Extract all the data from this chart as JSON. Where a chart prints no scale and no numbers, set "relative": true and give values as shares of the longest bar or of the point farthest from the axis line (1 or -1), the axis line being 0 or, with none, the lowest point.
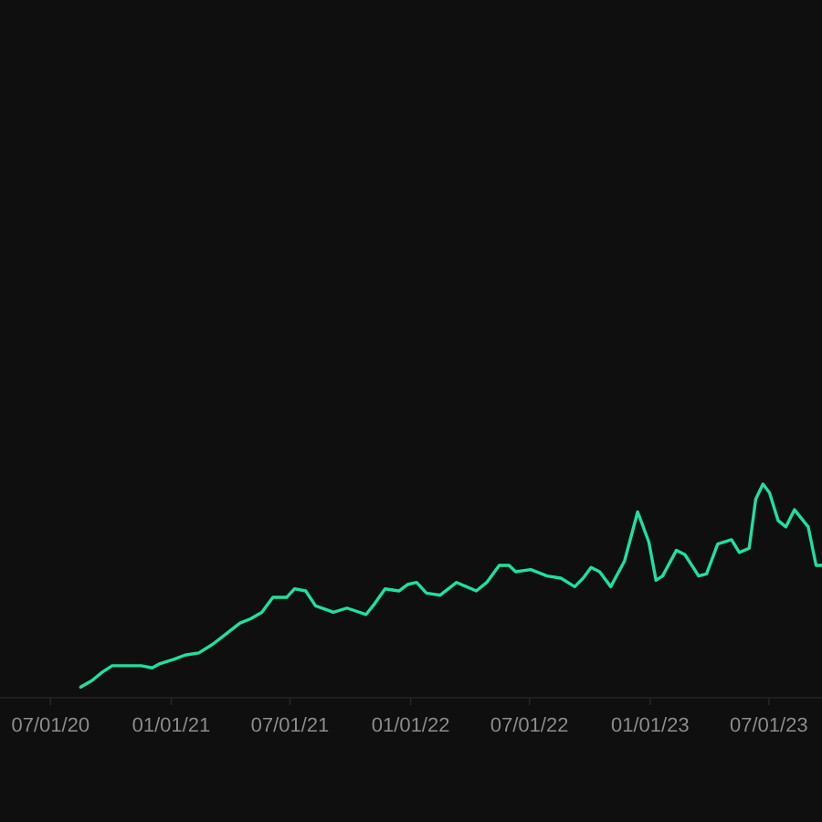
{
  "chart_data": {
    "type": "line",
    "relative": true,
    "color": "#1fe0a0",
    "line_style": "solid",
    "x": [
      "2020-08-16",
      "2020-09-02",
      "2020-09-18",
      "2020-10-03",
      "2020-10-22",
      "2020-11-16",
      "2020-12-03",
      "2020-12-15",
      "2021-01-05",
      "2021-01-22",
      "2021-02-12",
      "2021-03-05",
      "2021-03-26",
      "2021-04-16",
      "2021-05-02",
      "2021-05-19",
      "2021-06-05",
      "2021-06-26",
      "2021-07-08",
      "2021-07-25",
      "2021-08-09",
      "2021-08-28",
      "2021-09-05",
      "2021-09-26",
      "2021-10-25",
      "2021-11-07",
      "2021-11-23",
      "2021-12-14",
      "2021-12-27",
      "2022-01-10",
      "2022-01-25",
      "2022-02-15",
      "2022-03-12",
      "2022-04-11",
      "2022-04-27",
      "2022-05-16",
      "2022-05-31",
      "2022-06-10",
      "2022-07-03",
      "2022-07-28",
      "2022-08-18",
      "2022-09-08",
      "2022-09-21",
      "2022-10-03",
      "2022-10-16",
      "2022-11-02",
      "2022-11-23",
      "2022-12-13",
      "2022-12-30",
      "2023-01-10",
      "2023-01-20",
      "2023-02-10",
      "2023-02-23",
      "2023-03-16",
      "2023-03-28",
      "2023-04-14",
      "2023-05-05",
      "2023-05-17",
      "2023-06-01",
      "2023-06-11",
      "2023-06-22",
      "2023-07-02",
      "2023-07-15",
      "2023-07-27",
      "2023-08-09",
      "2023-08-30",
      "2023-09-11",
      "2023-09-20"
    ],
    "values": [
      0.05,
      0.08,
      0.12,
      0.15,
      0.15,
      0.15,
      0.14,
      0.16,
      0.18,
      0.2,
      0.21,
      0.25,
      0.3,
      0.35,
      0.37,
      0.4,
      0.47,
      0.47,
      0.51,
      0.5,
      0.43,
      0.41,
      0.4,
      0.42,
      0.39,
      0.44,
      0.51,
      0.5,
      0.53,
      0.54,
      0.49,
      0.48,
      0.54,
      0.5,
      0.54,
      0.62,
      0.62,
      0.59,
      0.6,
      0.57,
      0.56,
      0.52,
      0.56,
      0.61,
      0.59,
      0.52,
      0.64,
      0.87,
      0.73,
      0.55,
      0.57,
      0.69,
      0.67,
      0.57,
      0.58,
      0.72,
      0.74,
      0.68,
      0.7,
      0.93,
      1,
      0.96,
      0.83,
      0.8,
      0.88,
      0.8,
      0.62,
      0.62
    ],
    "xlim": [
      "2020-04-15",
      "2023-09-20"
    ],
    "xticks": [
      {
        "value": "2020-07-01",
        "label": "07/01/20"
      },
      {
        "value": "2021-01-01",
        "label": "01/01/21"
      },
      {
        "value": "2021-07-01",
        "label": "07/01/21"
      },
      {
        "value": "2022-01-01",
        "label": "01/01/22"
      },
      {
        "value": "2022-07-01",
        "label": "07/01/22"
      },
      {
        "value": "2023-01-01",
        "label": "01/01/23"
      },
      {
        "value": "2023-07-01",
        "label": "07/01/23"
      }
    ]
  }
}
